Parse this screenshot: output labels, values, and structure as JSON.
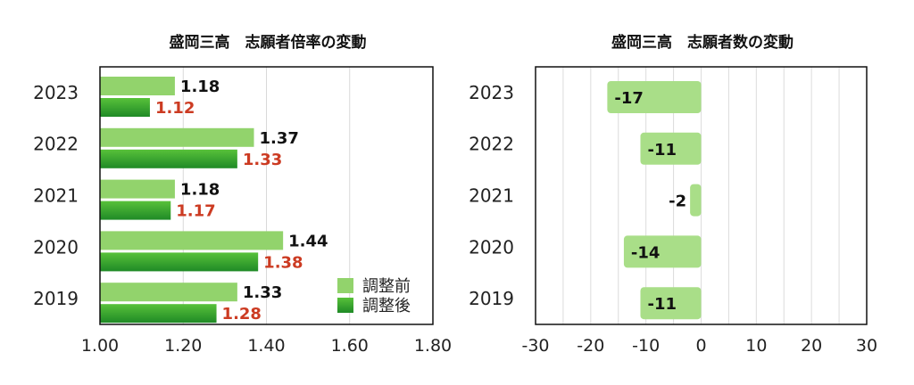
{
  "chart_data": [
    {
      "type": "bar",
      "orientation": "horizontal",
      "title": "盛岡三高　志願者倍率の変動",
      "categories": [
        "2023",
        "2022",
        "2021",
        "2020",
        "2019"
      ],
      "series": [
        {
          "name": "調整前",
          "values": [
            1.18,
            1.37,
            1.18,
            1.44,
            1.33
          ],
          "value_labels": [
            "1.18",
            "1.37",
            "1.18",
            "1.44",
            "1.33"
          ],
          "color": "#92d36c",
          "label_color": "#111111"
        },
        {
          "name": "調整後",
          "values": [
            1.12,
            1.33,
            1.17,
            1.38,
            1.28
          ],
          "value_labels": [
            "1.12",
            "1.33",
            "1.17",
            "1.38",
            "1.28"
          ],
          "color": "#2e9a2e",
          "label_color": "#cc3b22"
        }
      ],
      "xlim": [
        1.0,
        1.8
      ],
      "xticks": [
        "1.00",
        "1.20",
        "1.40",
        "1.60",
        "1.80"
      ],
      "grid": true,
      "legend": {
        "placement": "bottom-right",
        "entries": [
          "調整前",
          "調整後"
        ]
      }
    },
    {
      "type": "bar",
      "orientation": "horizontal",
      "title": "盛岡三高　志願者数の変動",
      "categories": [
        "2023",
        "2022",
        "2021",
        "2020",
        "2019"
      ],
      "series": [
        {
          "values": [
            -17,
            -11,
            -2,
            -14,
            -11
          ],
          "value_labels": [
            "-17",
            "-11",
            "-2",
            "-14",
            "-11"
          ],
          "color": "#a9de88",
          "label_color": "#111111"
        }
      ],
      "xlim": [
        -30,
        30
      ],
      "xticks": [
        "-30",
        "-20",
        "-10",
        "0",
        "10",
        "20",
        "30"
      ],
      "grid": true
    }
  ]
}
